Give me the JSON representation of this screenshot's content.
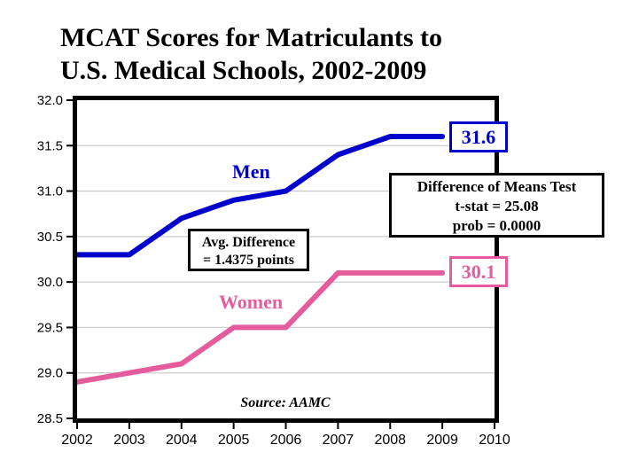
{
  "title": {
    "line1": "MCAT Scores for Matriculants to",
    "line2": "U.S. Medical Schools, 2002-2009"
  },
  "chart_data": {
    "type": "line",
    "title": "MCAT Scores for Matriculants to U.S. Medical Schools, 2002-2009",
    "x": [
      2002,
      2003,
      2004,
      2005,
      2006,
      2007,
      2008,
      2009
    ],
    "series": [
      {
        "name": "Men",
        "color": "#0000cc",
        "values": [
          30.3,
          30.3,
          30.7,
          30.9,
          31.0,
          31.4,
          31.6,
          31.6
        ]
      },
      {
        "name": "Women",
        "color": "#e45c9c",
        "values": [
          28.9,
          29.0,
          29.1,
          29.5,
          29.5,
          30.1,
          30.1,
          30.1
        ]
      }
    ],
    "xlabel": "",
    "ylabel": "",
    "xlim": [
      2002,
      2010
    ],
    "ylim": [
      28.5,
      32.0
    ],
    "xticks": [
      2002,
      2003,
      2004,
      2005,
      2006,
      2007,
      2008,
      2009,
      2010
    ],
    "yticks": [
      32.0,
      31.5,
      31.0,
      30.5,
      30.0,
      29.5,
      29.0,
      28.5
    ],
    "grid": "horizontal",
    "grid_color": "#cccccc",
    "border_color": "#000000",
    "tick_label_color": "#000000"
  },
  "annotations": {
    "men_label": "Men",
    "women_label": "Women",
    "men_end_value": "31.6",
    "women_end_value": "30.1",
    "avg_diff_box": {
      "line1": "Avg. Difference",
      "line2": "= 1.4375 points"
    },
    "means_test_box": {
      "line1": "Difference of Means Test",
      "line2": "t-stat = 25.08",
      "line3": "prob = 0.0000"
    },
    "source": "Source: AAMC"
  }
}
